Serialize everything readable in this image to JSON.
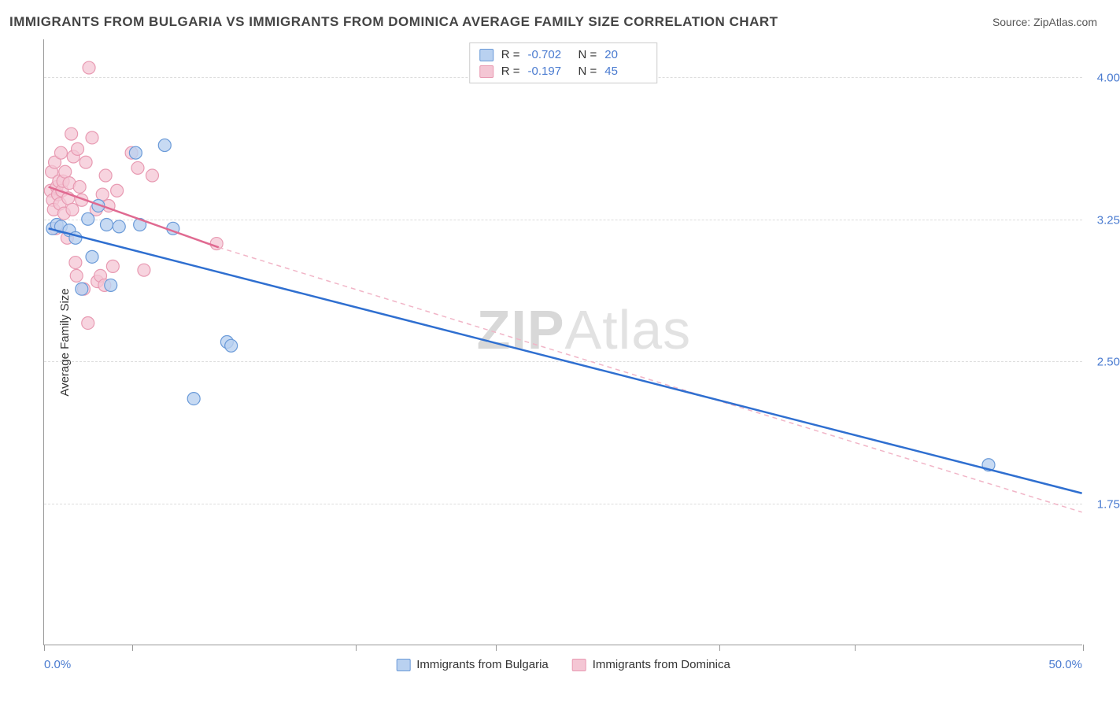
{
  "title": "IMMIGRANTS FROM BULGARIA VS IMMIGRANTS FROM DOMINICA AVERAGE FAMILY SIZE CORRELATION CHART",
  "source_label": "Source: ",
  "source_name": "ZipAtlas.com",
  "watermark_prefix": "ZIP",
  "watermark_suffix": "Atlas",
  "chart": {
    "type": "scatter",
    "background_color": "#ffffff",
    "grid_color": "#dddddd",
    "axis_color": "#999999",
    "x_axis": {
      "min": 0.0,
      "max": 50.0,
      "unit": "%",
      "tick_positions_pct": [
        0,
        8.5,
        30,
        43.5,
        65,
        78,
        100
      ],
      "label_left": "0.0%",
      "label_right": "50.0%"
    },
    "y_axis": {
      "title": "Average Family Size",
      "min": 1.0,
      "max": 4.2,
      "ticks": [
        {
          "value": 4.0,
          "label": "4.00"
        },
        {
          "value": 3.25,
          "label": "3.25"
        },
        {
          "value": 2.5,
          "label": "2.50"
        },
        {
          "value": 1.75,
          "label": "1.75"
        }
      ],
      "tick_color": "#4a7bd0",
      "tick_fontsize": 15
    },
    "series": [
      {
        "id": "bulgaria",
        "label": "Immigrants from Bulgaria",
        "R": "-0.702",
        "N": "20",
        "marker_fill": "#b9d1f0",
        "marker_stroke": "#6a9ad8",
        "marker_radius": 8,
        "marker_opacity": 0.8,
        "line_color": "#2f6fd0",
        "line_width": 2.5,
        "line_dash": "none",
        "swatch_fill": "#b9d1f0",
        "swatch_border": "#6a9ad8",
        "trend": {
          "x1": 0.2,
          "y1": 3.2,
          "x2": 50.0,
          "y2": 1.8
        },
        "points": [
          {
            "x": 0.4,
            "y": 3.2
          },
          {
            "x": 0.6,
            "y": 3.22
          },
          {
            "x": 0.8,
            "y": 3.21
          },
          {
            "x": 1.2,
            "y": 3.19
          },
          {
            "x": 1.5,
            "y": 3.15
          },
          {
            "x": 1.8,
            "y": 2.88
          },
          {
            "x": 2.1,
            "y": 3.25
          },
          {
            "x": 2.3,
            "y": 3.05
          },
          {
            "x": 2.6,
            "y": 3.32
          },
          {
            "x": 3.0,
            "y": 3.22
          },
          {
            "x": 3.2,
            "y": 2.9
          },
          {
            "x": 3.6,
            "y": 3.21
          },
          {
            "x": 4.4,
            "y": 3.6
          },
          {
            "x": 4.6,
            "y": 3.22
          },
          {
            "x": 5.8,
            "y": 3.64
          },
          {
            "x": 6.2,
            "y": 3.2
          },
          {
            "x": 7.2,
            "y": 2.3
          },
          {
            "x": 8.8,
            "y": 2.6
          },
          {
            "x": 9.0,
            "y": 2.58
          },
          {
            "x": 45.5,
            "y": 1.95
          }
        ]
      },
      {
        "id": "dominica",
        "label": "Immigrants from Dominica",
        "R": "-0.197",
        "N": "45",
        "marker_fill": "#f4c6d4",
        "marker_stroke": "#e89ab2",
        "marker_radius": 8,
        "marker_opacity": 0.75,
        "line_color": "#e06a91",
        "line_width": 2.5,
        "line_dash": "none",
        "dashed_ext_color": "#f1b5c7",
        "swatch_fill": "#f4c6d4",
        "swatch_border": "#e89ab2",
        "trend_solid": {
          "x1": 0.2,
          "y1": 3.42,
          "x2": 8.4,
          "y2": 3.1
        },
        "trend_dashed": {
          "x1": 8.4,
          "y1": 3.1,
          "x2": 50.0,
          "y2": 1.7
        },
        "points": [
          {
            "x": 0.3,
            "y": 3.4
          },
          {
            "x": 0.35,
            "y": 3.5
          },
          {
            "x": 0.4,
            "y": 3.35
          },
          {
            "x": 0.45,
            "y": 3.3
          },
          {
            "x": 0.5,
            "y": 3.55
          },
          {
            "x": 0.55,
            "y": 3.2
          },
          {
            "x": 0.6,
            "y": 3.42
          },
          {
            "x": 0.65,
            "y": 3.38
          },
          {
            "x": 0.7,
            "y": 3.45
          },
          {
            "x": 0.75,
            "y": 3.33
          },
          {
            "x": 0.8,
            "y": 3.6
          },
          {
            "x": 0.85,
            "y": 3.4
          },
          {
            "x": 0.9,
            "y": 3.45
          },
          {
            "x": 0.95,
            "y": 3.28
          },
          {
            "x": 1.0,
            "y": 3.5
          },
          {
            "x": 1.1,
            "y": 3.15
          },
          {
            "x": 1.15,
            "y": 3.36
          },
          {
            "x": 1.2,
            "y": 3.44
          },
          {
            "x": 1.3,
            "y": 3.7
          },
          {
            "x": 1.35,
            "y": 3.3
          },
          {
            "x": 1.4,
            "y": 3.58
          },
          {
            "x": 1.5,
            "y": 3.02
          },
          {
            "x": 1.55,
            "y": 2.95
          },
          {
            "x": 1.6,
            "y": 3.62
          },
          {
            "x": 1.7,
            "y": 3.42
          },
          {
            "x": 1.8,
            "y": 3.35
          },
          {
            "x": 1.9,
            "y": 2.88
          },
          {
            "x": 2.0,
            "y": 3.55
          },
          {
            "x": 2.1,
            "y": 2.7
          },
          {
            "x": 2.15,
            "y": 4.05
          },
          {
            "x": 2.3,
            "y": 3.68
          },
          {
            "x": 2.5,
            "y": 3.3
          },
          {
            "x": 2.55,
            "y": 2.92
          },
          {
            "x": 2.7,
            "y": 2.95
          },
          {
            "x": 2.8,
            "y": 3.38
          },
          {
            "x": 2.9,
            "y": 2.9
          },
          {
            "x": 2.95,
            "y": 3.48
          },
          {
            "x": 3.1,
            "y": 3.32
          },
          {
            "x": 3.3,
            "y": 3.0
          },
          {
            "x": 3.5,
            "y": 3.4
          },
          {
            "x": 4.2,
            "y": 3.6
          },
          {
            "x": 4.5,
            "y": 3.52
          },
          {
            "x": 4.8,
            "y": 2.98
          },
          {
            "x": 5.2,
            "y": 3.48
          },
          {
            "x": 8.3,
            "y": 3.12
          }
        ]
      }
    ],
    "legend_top": {
      "r_label": "R =",
      "n_label": "N ="
    }
  }
}
